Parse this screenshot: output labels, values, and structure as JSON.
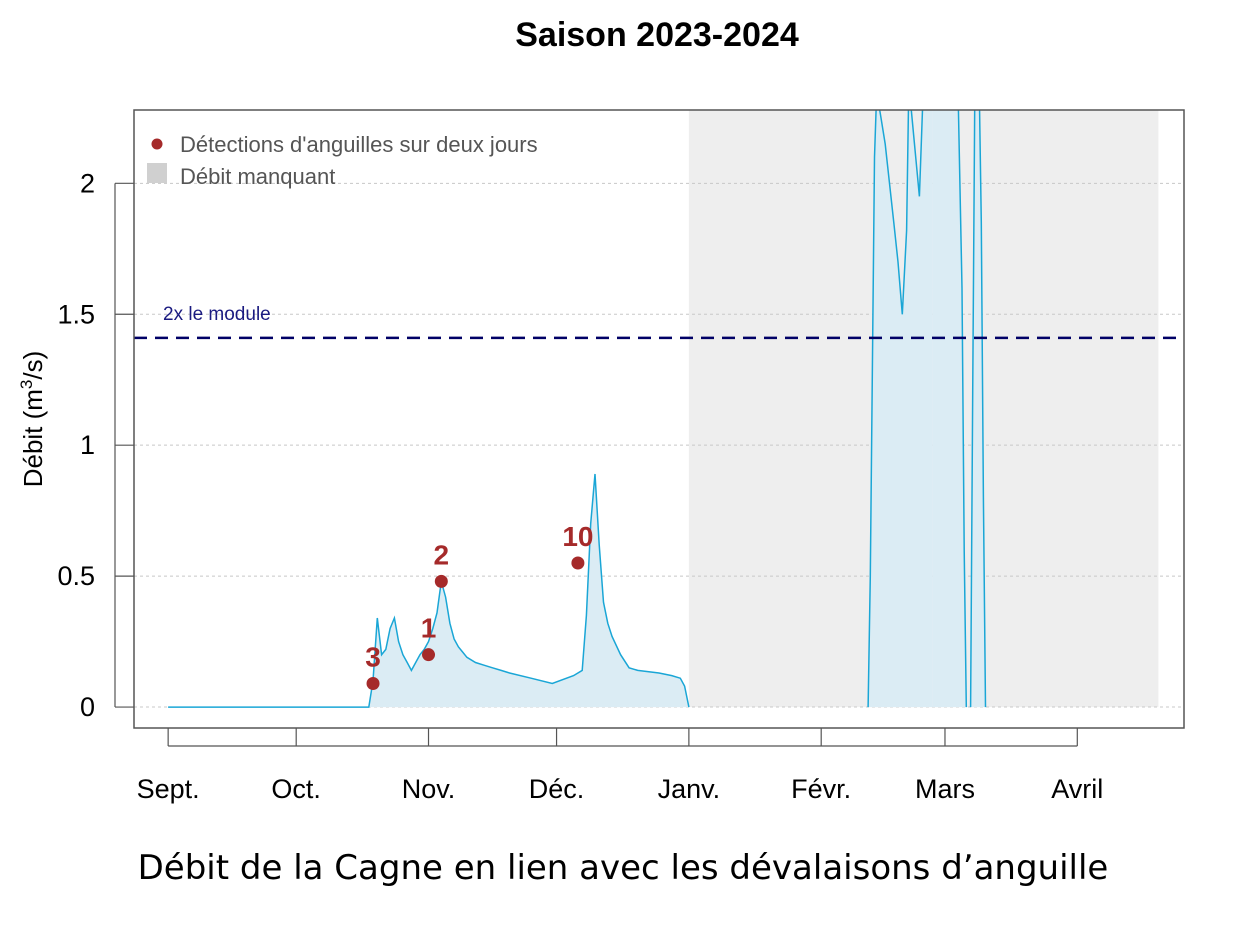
{
  "chart_data": {
    "type": "area",
    "title": "Saison 2023-2024",
    "ylabel": "Débit (m",
    "ylabel_sup": "3",
    "ylabel_end": "/s)",
    "xlabel": "",
    "ylim": [
      -0.08,
      2.28
    ],
    "yticks": [
      0,
      0.5,
      1,
      1.5,
      2
    ],
    "ytick_labels": [
      "0",
      "0.5",
      "1",
      "1.5",
      "2"
    ],
    "x_unit": "days since 2023-09-01",
    "xlim": [
      -8,
      238
    ],
    "month_ticks": [
      0,
      30,
      61,
      91,
      122,
      153,
      182,
      213
    ],
    "month_labels": [
      "Sept.",
      "Oct.",
      "Nov.",
      "Déc.",
      "Janv.",
      "Févr.",
      "Mars",
      "Avril"
    ],
    "grid": "horizontal dotted",
    "legend_position": "top-left",
    "legend": {
      "detections_label": "Détections d'anguilles sur deux jours",
      "missing_label": "Débit manquant"
    },
    "reference_line": {
      "label": "2x le module",
      "value": 1.41,
      "color": "#000066"
    },
    "missing_periods": [
      [
        122,
        232
      ]
    ],
    "colors": {
      "flow_line": "#1aa6d6",
      "flow_fill": "#dbecf4",
      "missing": "#eeeeee",
      "points": "#a52a2a"
    },
    "flow_series": [
      {
        "name": "Débit",
        "x": [
          0,
          20,
          40,
          47,
          48,
          49,
          50,
          51,
          52,
          53,
          54,
          55,
          56,
          57,
          58,
          59,
          60,
          61,
          62,
          63,
          64,
          65,
          66,
          67,
          68,
          69,
          70,
          72,
          74,
          76,
          78,
          80,
          85,
          90,
          95,
          97,
          98,
          99,
          100,
          101,
          102,
          103,
          104,
          106,
          108,
          110,
          115,
          118,
          120,
          121,
          122
        ],
        "y": [
          0,
          0,
          0,
          0,
          0.1,
          0.34,
          0.2,
          0.22,
          0.3,
          0.34,
          0.25,
          0.2,
          0.17,
          0.14,
          0.17,
          0.2,
          0.22,
          0.25,
          0.3,
          0.36,
          0.48,
          0.42,
          0.32,
          0.26,
          0.23,
          0.21,
          0.19,
          0.17,
          0.16,
          0.15,
          0.14,
          0.13,
          0.11,
          0.09,
          0.12,
          0.14,
          0.35,
          0.7,
          0.89,
          0.62,
          0.4,
          0.32,
          0.27,
          0.2,
          0.15,
          0.14,
          0.13,
          0.12,
          0.11,
          0.08,
          0
        ]
      },
      {
        "name": "Débit",
        "x": [
          164,
          164.5,
          165,
          165.5,
          166,
          167,
          168,
          170,
          171,
          172,
          173,
          173.5,
          174,
          176,
          177,
          177.5,
          178,
          178.5,
          179
        ],
        "y": [
          0,
          0.5,
          1.3,
          2.1,
          2.35,
          2.25,
          2.15,
          1.85,
          1.7,
          1.5,
          1.82,
          2.35,
          2.3,
          1.95,
          2.4,
          2.4,
          2.4,
          2.4,
          2.4
        ]
      },
      {
        "name": "Débit",
        "x": [
          179,
          185,
          186,
          186.5,
          187
        ],
        "y": [
          2.4,
          2.4,
          1.6,
          0.6,
          0
        ]
      },
      {
        "name": "Débit",
        "x": [
          188,
          188.5,
          189,
          190,
          190.5,
          191,
          191.5
        ],
        "y": [
          0,
          1.2,
          2.4,
          2.4,
          1.85,
          0.8,
          0
        ]
      }
    ],
    "detections": [
      {
        "x": 48,
        "y": 0.09,
        "label": "3"
      },
      {
        "x": 61,
        "y": 0.2,
        "label": "1"
      },
      {
        "x": 64,
        "y": 0.48,
        "label": "2"
      },
      {
        "x": 96,
        "y": 0.55,
        "label": "10"
      }
    ]
  },
  "caption": "Débit de la Cagne en lien avec les dévalaisons d’anguille"
}
